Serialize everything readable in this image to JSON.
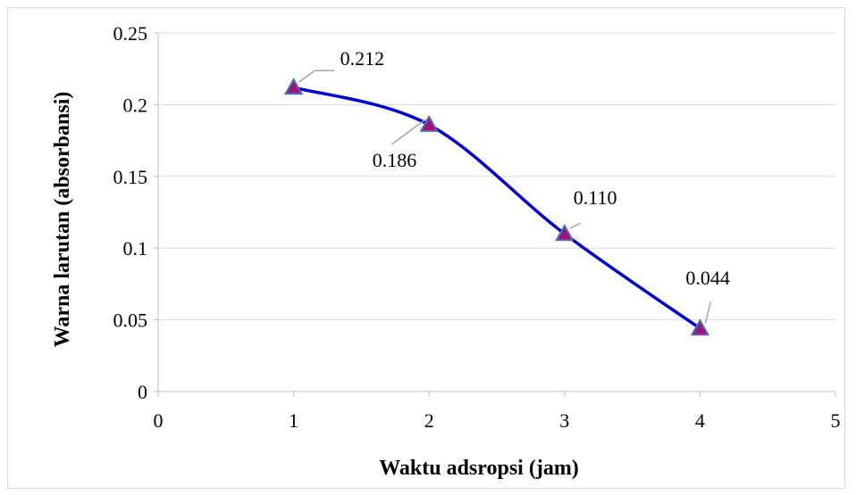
{
  "chart_data": {
    "type": "line",
    "title": "",
    "xlabel": "Waktu adsropsi (jam)",
    "ylabel": "Warna larutan (absorbansi)",
    "xlim": [
      0,
      5
    ],
    "ylim": [
      0,
      0.25
    ],
    "x_ticks": [
      "0",
      "1",
      "2",
      "3",
      "4",
      "5"
    ],
    "y_ticks": [
      "0",
      "0.05",
      "0.1",
      "0.15",
      "0.2",
      "0.25"
    ],
    "grid": "horizontal",
    "legend": "none",
    "smooth": true,
    "series": [
      {
        "x": [
          1,
          2,
          3,
          4
        ],
        "values": [
          0.212,
          0.186,
          0.11,
          0.044
        ],
        "labels": [
          "0.212",
          "0.186",
          "0.110",
          "0.044"
        ],
        "line_color": "#0000cc",
        "marker": "triangle",
        "marker_fill": "#a0127a",
        "marker_edge": "#4a6fb5"
      }
    ]
  }
}
